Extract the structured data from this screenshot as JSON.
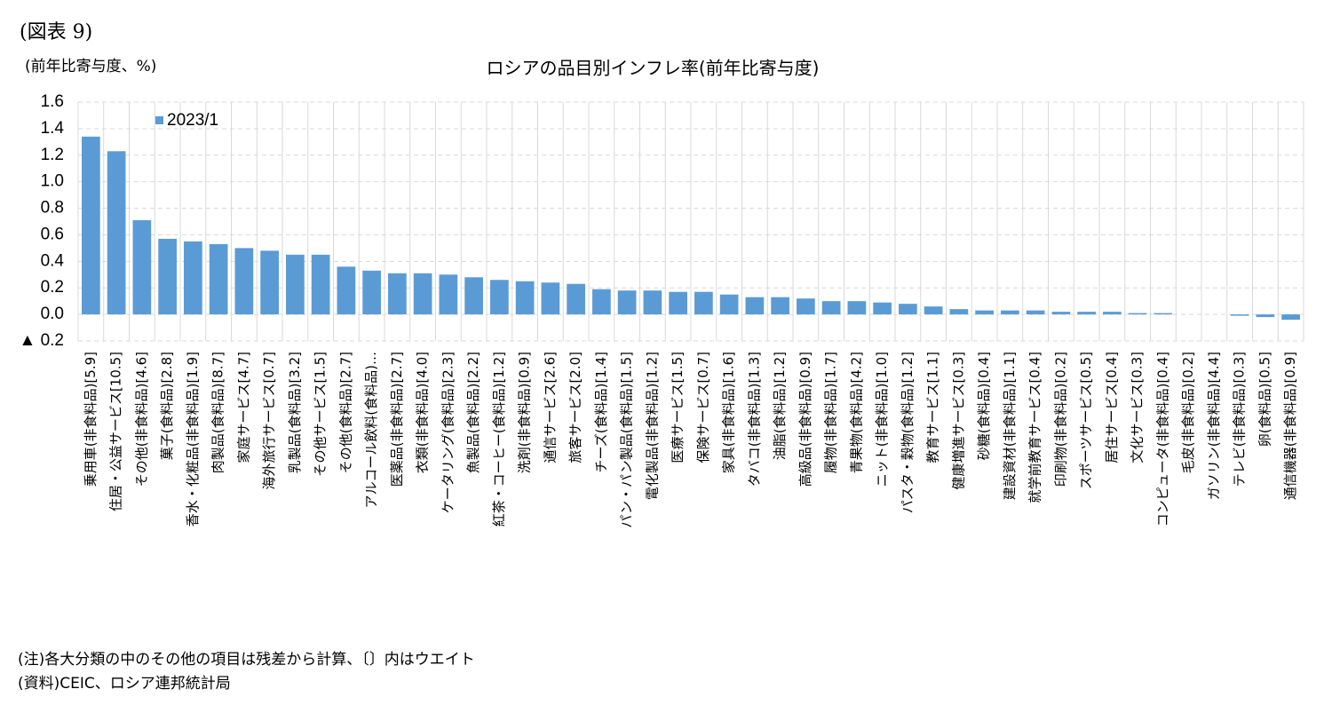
{
  "figure_label": "(図表 9)",
  "notes": [
    "(注)各大分類の中のその他の項目は残差から計算、〔〕内はウエイト",
    "(資料)CEIC、ロシア連邦統計局"
  ],
  "chart_data": {
    "type": "bar",
    "title": "ロシアの品目別インフレ率(前年比寄与度)",
    "ylabel": "(前年比寄与度、%)",
    "categories": [
      "乗用車(非食料品)[5.9]",
      "住居・公益サービス[10.5]",
      "その他(非食料品)[4.6]",
      "菓子(食料品)[2.8]",
      "香水・化粧品(非食料品)[1.9]",
      "肉製品(食料品)[8.7]",
      "家庭サービス[4.7]",
      "海外旅行サービス[0.7]",
      "乳製品(食料品)[3.2]",
      "その他サービス[1.5]",
      "その他(食料品)[2.7]",
      "アルコール飲料(食料品)…",
      "医薬品(非食料品)[2.7]",
      "衣類(非食料品)[4.0]",
      "ケータリング(食料品)[2.3]",
      "魚製品(食料品)[2.2]",
      "紅茶・コーヒー(食料品)[1.2]",
      "洗剤(非食料品)[0.9]",
      "通信サービス[2.6]",
      "旅客サービス[2.0]",
      "チーズ(食料品)[1.4]",
      "パン・パン製品(食料品)[1.5]",
      "電化製品(非食料品)[1.2]",
      "医療サービス[1.5]",
      "保険サービス[0.7]",
      "家具(非食料品)[1.6]",
      "タバコ(非食料品)[1.3]",
      "油脂(食料品)[1.2]",
      "高級品(非食料品)[0.9]",
      "履物(非食料品)[1.7]",
      "青果物(食料品)[4.2]",
      "ニット(非食料品)[1.0]",
      "パスタ・穀物(食料品)[1.2]",
      "教育サービス[1.1]",
      "健康増進サービス[0.3]",
      "砂糖(食料品)[0.4]",
      "建設資材(非食料品)[1.1]",
      "就学前教育サービス[0.4]",
      "印刷物(非食料品)[0.2]",
      "スポーツサービス[0.5]",
      "居住サービス[0.4]",
      "文化サービス[0.3]",
      "コンピュータ(非食料品)[0.4]",
      "毛皮(非食料品)[0.2]",
      "ガソリン(非食料品)[4.4]",
      "テレビ(非食料品)[0.3]",
      "卵(食料品)[0.5]",
      "通信機器(非食料品)[0.9]"
    ],
    "series": [
      {
        "name": "2023/1",
        "color": "#5b9bd5",
        "values": [
          1.34,
          1.23,
          0.71,
          0.57,
          0.55,
          0.53,
          0.5,
          0.48,
          0.45,
          0.45,
          0.36,
          0.33,
          0.31,
          0.31,
          0.3,
          0.28,
          0.26,
          0.25,
          0.24,
          0.23,
          0.19,
          0.18,
          0.18,
          0.17,
          0.17,
          0.15,
          0.13,
          0.13,
          0.12,
          0.1,
          0.1,
          0.09,
          0.08,
          0.06,
          0.04,
          0.03,
          0.03,
          0.03,
          0.02,
          0.02,
          0.02,
          0.01,
          0.01,
          0.0,
          0.0,
          -0.01,
          -0.02,
          -0.04
        ]
      }
    ],
    "ylim": [
      -0.2,
      1.6
    ],
    "yticks": [
      {
        "value": -0.2,
        "label": "▲ 0.2"
      },
      {
        "value": 0,
        "label": "0.0"
      },
      0.2,
      0.4,
      0.6,
      0.8,
      {
        "value": 1,
        "label": "1.0"
      },
      1.2,
      1.4,
      1.6
    ],
    "grid": true
  }
}
